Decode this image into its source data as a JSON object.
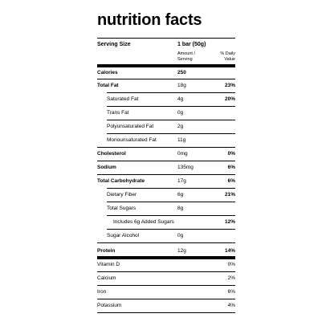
{
  "title": "nutrition facts",
  "serving": {
    "label": "Serving Size",
    "value": "1 bar (50g)"
  },
  "columns": {
    "amount": "Amount / Serving",
    "dv": "% Daily Value"
  },
  "rows": [
    {
      "label": "Calories",
      "amount": "250",
      "dv": "",
      "bold": true
    },
    {
      "label": "Total Fat",
      "amount": "18g",
      "dv": "23%",
      "bold": true
    },
    {
      "label": "Saturated Fat",
      "amount": "4g",
      "dv": "20%",
      "bold": false
    },
    {
      "label": "Trans Fat",
      "amount": "0g",
      "dv": "",
      "bold": false
    },
    {
      "label": "Polyunsaturated Fat",
      "amount": "2g",
      "dv": "",
      "bold": false
    },
    {
      "label": "Monounsaturated Fat",
      "amount": "11g",
      "dv": "",
      "bold": false
    },
    {
      "label": "Cholesterol",
      "amount": "0mg",
      "dv": "0%",
      "bold": true
    },
    {
      "label": "Sodium",
      "amount": "135mg",
      "dv": "6%",
      "bold": true
    },
    {
      "label": "Total Carbohydrate",
      "amount": "17g",
      "dv": "6%",
      "bold": true
    },
    {
      "label": "Dietary Fiber",
      "amount": "6g",
      "dv": "21%",
      "bold": false
    },
    {
      "label": "Total Sugars",
      "amount": "8g",
      "dv": "",
      "bold": false
    },
    {
      "label": "Includes 6g Added Sugars",
      "amount": "",
      "dv": "12%",
      "bold": false
    },
    {
      "label": "Sugar Alcohol",
      "amount": "0g",
      "dv": "",
      "bold": false
    },
    {
      "label": "Protein",
      "amount": "12g",
      "dv": "14%",
      "bold": true
    },
    {
      "label": "Vitamin D",
      "amount": "",
      "dv": "0%",
      "bold": false
    },
    {
      "label": "Calcium",
      "amount": "",
      "dv": "2%",
      "bold": false
    },
    {
      "label": "Iron",
      "amount": "",
      "dv": "6%",
      "bold": false
    },
    {
      "label": "Potassium",
      "amount": "",
      "dv": "4%",
      "bold": false
    }
  ]
}
